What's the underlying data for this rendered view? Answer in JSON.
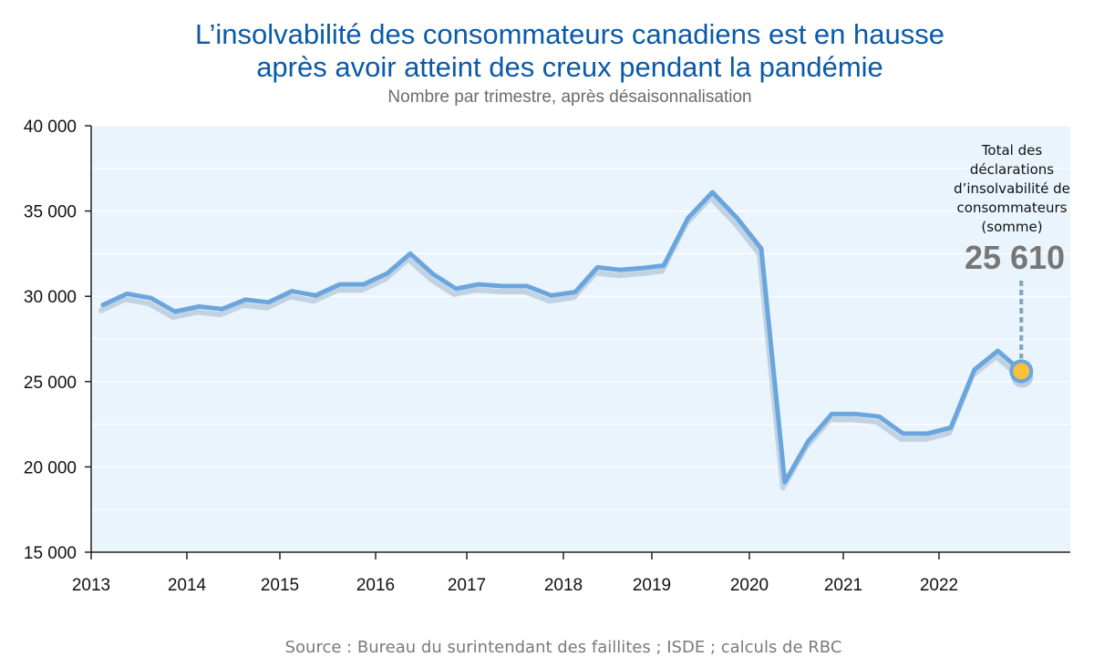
{
  "title_line1": "L’insolvabilité des consommateurs canadiens est en hausse",
  "title_line2": "après avoir atteint des creux pendant la pandémie",
  "subtitle": "Nombre par trimestre, après désaisonnalisation",
  "source": "Source : Bureau du surintendant des faillites ; ISDE ; calculs de RBC",
  "colors": {
    "title": "#0b5aa8",
    "line": "#6aa6dd",
    "shadow": "#b7c9db",
    "plot_bg": "#eaf4fc",
    "marker_fill": "#f7c23a",
    "leader": "#7fa7b7"
  },
  "chart_data": {
    "type": "line",
    "title": "L’insolvabilité des consommateurs canadiens est en hausse après avoir atteint des creux pendant la pandémie",
    "subtitle": "Nombre par trimestre, après désaisonnalisation",
    "xlabel": "",
    "ylabel": "",
    "ylim": [
      15000,
      40000
    ],
    "xlim": [
      2013.0,
      2023.5
    ],
    "yticks": [
      {
        "value": 15000,
        "label": "15 000"
      },
      {
        "value": 20000,
        "label": "20 000"
      },
      {
        "value": 25000,
        "label": "25 000"
      },
      {
        "value": 30000,
        "label": "30 000"
      },
      {
        "value": 35000,
        "label": "35 000"
      },
      {
        "value": 40000,
        "label": "40 000"
      }
    ],
    "xticks": [
      {
        "value": 2013,
        "label": "2013"
      },
      {
        "value": 2014,
        "label": "2014"
      },
      {
        "value": 2015,
        "label": "2015"
      },
      {
        "value": 2016,
        "label": "2016"
      },
      {
        "value": 2017,
        "label": "2017"
      },
      {
        "value": 2018,
        "label": "2018"
      },
      {
        "value": 2019,
        "label": "2019"
      },
      {
        "value": 2020,
        "label": "2020"
      },
      {
        "value": 2021,
        "label": "2021"
      },
      {
        "value": 2022,
        "label": "2022"
      }
    ],
    "grid": true,
    "series": [
      {
        "x": [
          2013.0,
          2013.25,
          2013.5,
          2013.75,
          2014.0,
          2014.25,
          2014.5,
          2014.75,
          2015.0,
          2015.25,
          2015.5,
          2015.75,
          2016.0,
          2016.25,
          2016.5,
          2016.75,
          2017.0,
          2017.25,
          2017.5,
          2017.75,
          2018.0,
          2018.25,
          2018.5,
          2018.75,
          2019.0,
          2019.25,
          2019.5,
          2019.75,
          2020.0,
          2020.25,
          2020.5,
          2020.75,
          2021.0,
          2021.25,
          2021.5,
          2021.75,
          2022.0,
          2022.25,
          2022.5,
          2022.75
        ],
        "y": [
          29500,
          30150,
          29900,
          29100,
          29400,
          29250,
          29800,
          29650,
          30300,
          30050,
          30700,
          30700,
          31350,
          32500,
          31300,
          30450,
          30700,
          30600,
          30600,
          30050,
          30250,
          31700,
          31550,
          31650,
          31800,
          34600,
          36100,
          34600,
          32800,
          19100,
          21500,
          23100,
          23100,
          22950,
          21950,
          21950,
          22300,
          25700,
          26800,
          25610
        ]
      }
    ],
    "annotation": {
      "text_lines": [
        "Total des",
        "déclarations",
        "d’insolvabilité de",
        "consommateurs",
        "(somme)"
      ],
      "value_label": "25 610",
      "x": 2022.75,
      "y": 25610
    }
  }
}
